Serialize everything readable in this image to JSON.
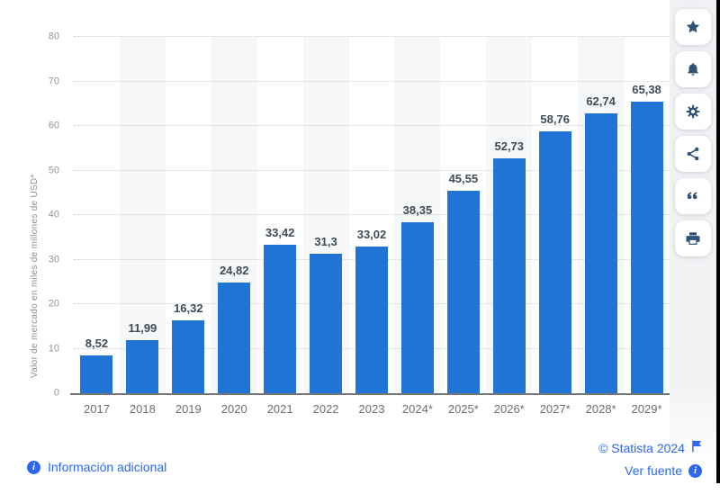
{
  "chart_data": {
    "type": "bar",
    "title": "",
    "xlabel": "",
    "ylabel": "Valor de mercado en miles de millones de USD*",
    "ylim": [
      0,
      80
    ],
    "yticks": [
      0,
      10,
      20,
      30,
      40,
      50,
      60,
      70,
      80
    ],
    "grid": "horizontal-dotted",
    "legend": "none",
    "categories": [
      "2017",
      "2018",
      "2019",
      "2020",
      "2021",
      "2022",
      "2023",
      "2024*",
      "2025*",
      "2026*",
      "2027*",
      "2028*",
      "2029*"
    ],
    "values": [
      8.52,
      11.99,
      16.32,
      24.82,
      33.42,
      31.3,
      33.02,
      38.35,
      45.55,
      52.73,
      58.76,
      62.74,
      65.38
    ],
    "value_labels": [
      "8,52",
      "11,99",
      "16,32",
      "24,82",
      "33,42",
      "31,3",
      "33,02",
      "38,35",
      "45,55",
      "52,73",
      "58,76",
      "62,74",
      "65,38"
    ]
  },
  "toolbar": {
    "icons": [
      {
        "name": "favorite-star-icon"
      },
      {
        "name": "notification-bell-icon"
      },
      {
        "name": "settings-gear-icon"
      },
      {
        "name": "share-icon"
      },
      {
        "name": "citation-quote-icon"
      },
      {
        "name": "print-icon"
      }
    ]
  },
  "footer": {
    "additional_info_label": "Información adicional",
    "copyright_label": "© Statista 2024",
    "source_label": "Ver fuente"
  },
  "colors": {
    "bar_blue": "#1f74d6",
    "link_blue": "#2b67f0",
    "icon_navy": "#2f5378",
    "value_label": "#3e4c59",
    "plot_band": "#f6f7f8"
  }
}
